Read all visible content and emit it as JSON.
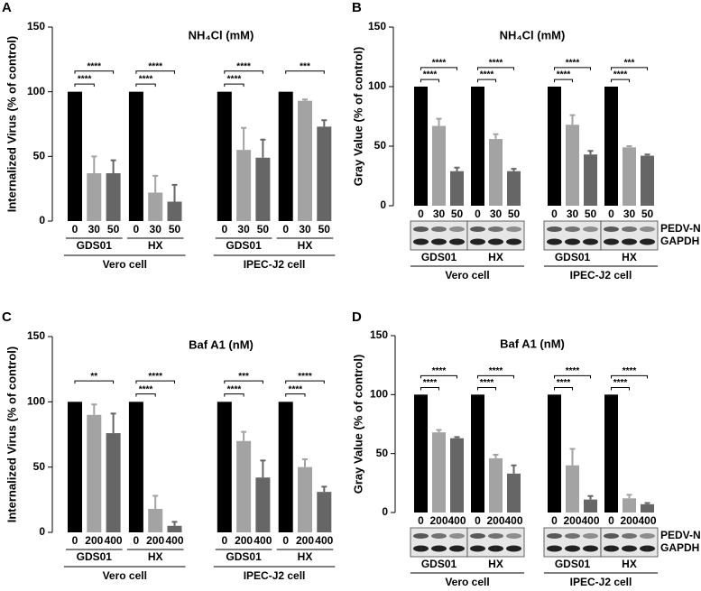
{
  "chart_data": [
    {
      "type": "bar",
      "panel": "A",
      "title": "NH₄Cl (mM)",
      "y_label": "Internalized Virus (% of control)",
      "ylim": [
        0,
        150
      ],
      "yticks": [
        0,
        50,
        100,
        150
      ],
      "categories": [
        "0",
        "30",
        "50",
        "0",
        "30",
        "50",
        "0",
        "30",
        "50",
        "0",
        "30",
        "50"
      ],
      "values": [
        100,
        37,
        37,
        100,
        22,
        15,
        100,
        55,
        49,
        100,
        93,
        73
      ],
      "errors": [
        0,
        13,
        10,
        0,
        13,
        13,
        0,
        17,
        14,
        0,
        1,
        5
      ],
      "colors": [
        "#000000",
        "#a3a3a3",
        "#666666",
        "#000000",
        "#a3a3a3",
        "#666666",
        "#000000",
        "#a3a3a3",
        "#666666",
        "#000000",
        "#a3a3a3",
        "#666666"
      ],
      "significance": [
        null,
        "****",
        "****",
        null,
        "****",
        "****",
        null,
        "****",
        "****",
        null,
        null,
        "***"
      ],
      "groups": [
        "GDS01",
        "HX",
        "GDS01",
        "HX"
      ],
      "cells": [
        "Vero cell",
        "IPEC-J2 cell"
      ]
    },
    {
      "type": "bar",
      "panel": "B",
      "title": "NH₄Cl (mM)",
      "y_label": "Gray Value  (% of control)",
      "ylim": [
        0,
        150
      ],
      "yticks": [
        0,
        50,
        100,
        150
      ],
      "categories": [
        "0",
        "30",
        "50",
        "0",
        "30",
        "50",
        "0",
        "30",
        "50",
        "0",
        "30",
        "50"
      ],
      "values": [
        100,
        67,
        29,
        100,
        56,
        29,
        100,
        68,
        43,
        100,
        49,
        42
      ],
      "errors": [
        0,
        6,
        3,
        0,
        4,
        2,
        0,
        8,
        3,
        0,
        1,
        1
      ],
      "colors": [
        "#000000",
        "#a3a3a3",
        "#666666",
        "#000000",
        "#a3a3a3",
        "#666666",
        "#000000",
        "#a3a3a3",
        "#666666",
        "#000000",
        "#a3a3a3",
        "#666666"
      ],
      "significance": [
        null,
        "****",
        "****",
        null,
        "****",
        "****",
        null,
        "****",
        "****",
        null,
        "****",
        "***"
      ],
      "groups": [
        "GDS01",
        "HX",
        "GDS01",
        "HX"
      ],
      "cells": [
        "Vero cell",
        "IPEC-J2 cell"
      ],
      "blot_labels": [
        "PEDV-N",
        "GAPDH"
      ]
    },
    {
      "type": "bar",
      "panel": "C",
      "title": "Baf A1 (nM)",
      "y_label": "Internalized Virus (% of control)",
      "ylim": [
        0,
        150
      ],
      "yticks": [
        0,
        50,
        100,
        150
      ],
      "categories": [
        "0",
        "200",
        "400",
        "0",
        "200",
        "400",
        "0",
        "200",
        "400",
        "0",
        "200",
        "400"
      ],
      "values": [
        100,
        90,
        76,
        100,
        18,
        5,
        100,
        70,
        42,
        100,
        50,
        31
      ],
      "errors": [
        0,
        8,
        15,
        0,
        10,
        3,
        0,
        7,
        13,
        0,
        6,
        4
      ],
      "colors": [
        "#000000",
        "#a3a3a3",
        "#666666",
        "#000000",
        "#a3a3a3",
        "#666666",
        "#000000",
        "#a3a3a3",
        "#666666",
        "#000000",
        "#a3a3a3",
        "#666666"
      ],
      "significance": [
        null,
        null,
        "**",
        null,
        "****",
        "****",
        null,
        "****",
        "***",
        null,
        "****",
        "****"
      ],
      "groups": [
        "GDS01",
        "HX",
        "GDS01",
        "HX"
      ],
      "cells": [
        "Vero cell",
        "IPEC-J2 cell"
      ]
    },
    {
      "type": "bar",
      "panel": "D",
      "title": "Baf A1 (nM)",
      "y_label": "Gray Value  (% of control)",
      "ylim": [
        0,
        150
      ],
      "yticks": [
        0,
        50,
        100,
        150
      ],
      "categories": [
        "0",
        "200",
        "400",
        "0",
        "200",
        "400",
        "0",
        "200",
        "400",
        "0",
        "200",
        "400"
      ],
      "values": [
        100,
        68,
        63,
        100,
        46,
        33,
        100,
        40,
        11,
        100,
        12,
        7
      ],
      "errors": [
        0,
        2,
        1,
        0,
        3,
        7,
        0,
        14,
        3,
        0,
        3,
        1
      ],
      "colors": [
        "#000000",
        "#a3a3a3",
        "#666666",
        "#000000",
        "#a3a3a3",
        "#666666",
        "#000000",
        "#a3a3a3",
        "#666666",
        "#000000",
        "#a3a3a3",
        "#666666"
      ],
      "significance": [
        null,
        "****",
        "****",
        null,
        "****",
        "****",
        null,
        "****",
        "****",
        null,
        "****",
        "****"
      ],
      "groups": [
        "GDS01",
        "HX",
        "GDS01",
        "HX"
      ],
      "cells": [
        "Vero cell",
        "IPEC-J2 cell"
      ],
      "blot_labels": [
        "PEDV-N",
        "GAPDH"
      ]
    }
  ]
}
